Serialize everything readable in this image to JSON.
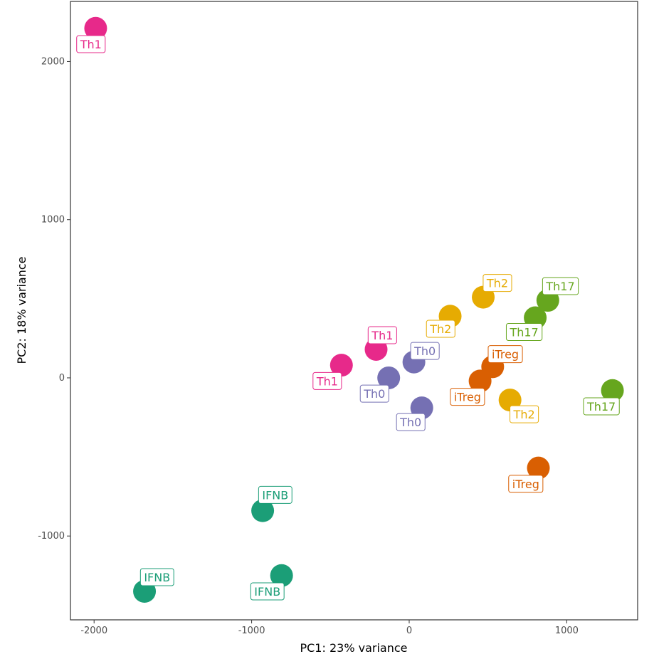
{
  "chart_data": {
    "type": "scatter",
    "xlabel": "PC1: 23% variance",
    "ylabel": "PC2: 18% variance",
    "xlim": [
      -2150,
      1450
    ],
    "ylim": [
      -1530,
      2380
    ],
    "xticks": [
      -2000,
      -1000,
      0,
      1000
    ],
    "yticks": [
      -1000,
      0,
      1000,
      2000
    ],
    "x_tick_labels": [
      "-2000",
      "-1000",
      "0",
      "1000"
    ],
    "y_tick_labels": [
      "-1000",
      "0",
      "1000",
      "2000"
    ],
    "grid": false,
    "legend": "none",
    "groups": [
      {
        "name": "Th1",
        "color": "#e7298a"
      },
      {
        "name": "Th0",
        "color": "#7570b3"
      },
      {
        "name": "Th2",
        "color": "#e6ab02"
      },
      {
        "name": "Th17",
        "color": "#66a61e"
      },
      {
        "name": "iTreg",
        "color": "#d95f02"
      },
      {
        "name": "IFNB",
        "color": "#1b9e77"
      }
    ],
    "points": [
      {
        "label": "Th1",
        "x": -1990,
        "y": 2210,
        "label_x": -2020,
        "label_y": 2110
      },
      {
        "label": "Th1",
        "x": -430,
        "y": 80,
        "label_x": -520,
        "label_y": -20
      },
      {
        "label": "Th1",
        "x": -210,
        "y": 180,
        "label_x": -170,
        "label_y": 270
      },
      {
        "label": "Th0",
        "x": -130,
        "y": 0,
        "label_x": -220,
        "label_y": -100
      },
      {
        "label": "Th0",
        "x": 30,
        "y": 100,
        "label_x": 100,
        "label_y": 170
      },
      {
        "label": "Th0",
        "x": 80,
        "y": -190,
        "label_x": 10,
        "label_y": -280
      },
      {
        "label": "Th2",
        "x": 260,
        "y": 390,
        "label_x": 200,
        "label_y": 310
      },
      {
        "label": "Th2",
        "x": 470,
        "y": 510,
        "label_x": 560,
        "label_y": 600
      },
      {
        "label": "Th2",
        "x": 640,
        "y": -140,
        "label_x": 730,
        "label_y": -230
      },
      {
        "label": "Th17",
        "x": 800,
        "y": 380,
        "label_x": 730,
        "label_y": 290
      },
      {
        "label": "Th17",
        "x": 880,
        "y": 490,
        "label_x": 960,
        "label_y": 580
      },
      {
        "label": "Th17",
        "x": 1290,
        "y": -80,
        "label_x": 1220,
        "label_y": -180
      },
      {
        "label": "iTreg",
        "x": 450,
        "y": -20,
        "label_x": 370,
        "label_y": -120
      },
      {
        "label": "iTreg",
        "x": 530,
        "y": 70,
        "label_x": 610,
        "label_y": 150
      },
      {
        "label": "iTreg",
        "x": 820,
        "y": -570,
        "label_x": 740,
        "label_y": -670
      },
      {
        "label": "IFNB",
        "x": -930,
        "y": -840,
        "label_x": -850,
        "label_y": -740
      },
      {
        "label": "IFNB",
        "x": -810,
        "y": -1250,
        "label_x": -900,
        "label_y": -1350
      },
      {
        "label": "IFNB",
        "x": -1680,
        "y": -1350,
        "label_x": -1600,
        "label_y": -1260
      }
    ]
  }
}
